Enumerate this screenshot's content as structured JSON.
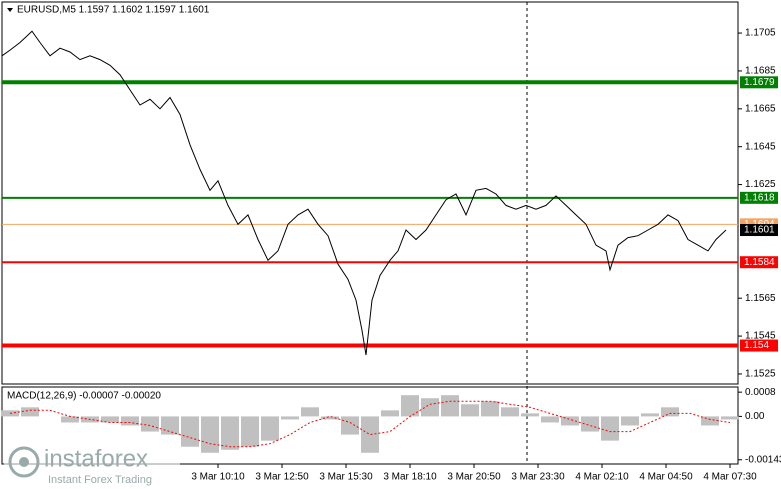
{
  "chart_data": [
    {
      "type": "line",
      "title": "EURUSD,M5  1.1597 1.1602 1.1597 1.1601",
      "xlim": [
        0,
        368
      ],
      "ylim": [
        1.15197,
        1.17214
      ],
      "yticks": [
        1.1705,
        1.1685,
        1.1665,
        1.1645,
        1.1625,
        1.1565,
        1.1545,
        1.1525
      ],
      "xticks": [
        {
          "value": 108,
          "label": "3 Mar 10:10"
        },
        {
          "value": 140,
          "label": "3 Mar 12:50"
        },
        {
          "value": 172,
          "label": "3 Mar 15:30"
        },
        {
          "value": 204,
          "label": "3 Mar 18:10"
        },
        {
          "value": 236,
          "label": "3 Mar 20:50"
        },
        {
          "value": 268,
          "label": "3 Mar 23:30"
        },
        {
          "value": 300,
          "label": "4 Mar 02:10"
        },
        {
          "value": 332,
          "label": "4 Mar 04:50"
        },
        {
          "value": 364,
          "label": "4 Mar 07:30"
        }
      ],
      "x": [
        0,
        4,
        9,
        15,
        19,
        24,
        29,
        34,
        39,
        44,
        49,
        54,
        59,
        64,
        69,
        74,
        79,
        84,
        89,
        94,
        99,
        104,
        108,
        113,
        118,
        123,
        128,
        133,
        138,
        143,
        148,
        153,
        158,
        163,
        168,
        173,
        177,
        180,
        182,
        185,
        189,
        194,
        198,
        202,
        207,
        212,
        217,
        222,
        227,
        232,
        237,
        242,
        247,
        252,
        257,
        262,
        267,
        272,
        277,
        282,
        287,
        292,
        297,
        302,
        304,
        308,
        313,
        318,
        323,
        328,
        333,
        338,
        343,
        348,
        353,
        357,
        362
      ],
      "series": [
        {
          "color": "#000000",
          "values": [
            1.1693,
            1.1696,
            1.17,
            1.1706,
            1.17,
            1.1693,
            1.1697,
            1.1695,
            1.1691,
            1.1693,
            1.1691,
            1.1688,
            1.1683,
            1.1675,
            1.1667,
            1.167,
            1.1665,
            1.1671,
            1.1662,
            1.1646,
            1.1633,
            1.1622,
            1.1627,
            1.1614,
            1.1604,
            1.1609,
            1.1596,
            1.1585,
            1.159,
            1.1604,
            1.1609,
            1.1612,
            1.1604,
            1.1598,
            1.1583,
            1.1575,
            1.1564,
            1.1548,
            1.1535,
            1.1564,
            1.1577,
            1.1585,
            1.159,
            1.1601,
            1.1596,
            1.1601,
            1.1609,
            1.1617,
            1.162,
            1.1609,
            1.1622,
            1.1623,
            1.162,
            1.1614,
            1.1612,
            1.1614,
            1.1612,
            1.1614,
            1.1619,
            1.1614,
            1.1609,
            1.1604,
            1.1593,
            1.159,
            1.158,
            1.1593,
            1.1597,
            1.1598,
            1.1601,
            1.1604,
            1.1609,
            1.1606,
            1.1596,
            1.1593,
            1.159,
            1.1596,
            1.1601
          ]
        }
      ],
      "levels": [
        {
          "value": 1.1679,
          "color": "#008000",
          "width": 4
        },
        {
          "value": 1.1618,
          "color": "#008000",
          "width": 2
        },
        {
          "value": 1.1584,
          "color": "#ff0000",
          "width": 2
        },
        {
          "value": 1.154,
          "color": "#ff0000",
          "width": 4
        },
        {
          "value": 1.1604,
          "color": "#f4a460",
          "width": 1
        },
        {
          "value": 1.1601,
          "color": "#000000",
          "width": 0
        }
      ]
    },
    {
      "type": "bar",
      "title": "MACD(12,26,9) -0.00007 -0.00020",
      "xlim": [
        0,
        368
      ],
      "ylim": [
        -0.00157,
        0.00097
      ],
      "yticks": [
        0.0008,
        {
          "value": 0,
          "label": "0.00"
        },
        -0.00143
      ],
      "x": [
        4,
        14,
        24,
        34,
        44,
        54,
        64,
        74,
        84,
        94,
        104,
        114,
        124,
        134,
        144,
        154,
        164,
        174,
        184,
        194,
        204,
        214,
        224,
        234,
        244,
        254,
        264,
        274,
        284,
        294,
        304,
        314,
        324,
        334,
        344,
        354,
        364
      ],
      "series": [
        {
          "color": "#c0c0c0",
          "style": "bar",
          "values": [
            0.0002,
            0.0003,
            0.0,
            -0.0002,
            -0.0002,
            -0.0002,
            -0.0003,
            -0.0005,
            -0.0006,
            -0.001,
            -0.0012,
            -0.0011,
            -0.001,
            -0.0008,
            -0.0001,
            0.0003,
            -0.0001,
            -0.0006,
            -0.0012,
            0.0002,
            0.0007,
            0.0006,
            0.0007,
            0.0004,
            0.0005,
            0.0003,
            0.0001,
            -0.0002,
            -0.0003,
            -0.0005,
            -0.0008,
            -0.0003,
            0.0001,
            0.0003,
            0.0,
            -0.0003,
            -0.0001
          ]
        },
        {
          "color": "#ff0000",
          "style": "dotted-line",
          "values": [
            0.0001,
            0.0002,
            0.0002,
            0.0,
            -0.0001,
            -0.0002,
            -0.0002,
            -0.0003,
            -0.0005,
            -0.0007,
            -0.0009,
            -0.001,
            -0.001,
            -0.0009,
            -0.0006,
            -0.0002,
            0.0,
            -0.0002,
            -0.0006,
            -0.0005,
            0.0,
            0.0004,
            0.0005,
            0.0005,
            0.0005,
            0.0004,
            0.0003,
            0.0001,
            -0.0001,
            -0.0003,
            -0.0005,
            -0.0005,
            -0.0002,
            0.0001,
            0.0001,
            -0.0001,
            -0.0002
          ]
        }
      ]
    }
  ],
  "watermark": {
    "brand": "instaforex",
    "tagline": "Instant Forex Trading"
  }
}
